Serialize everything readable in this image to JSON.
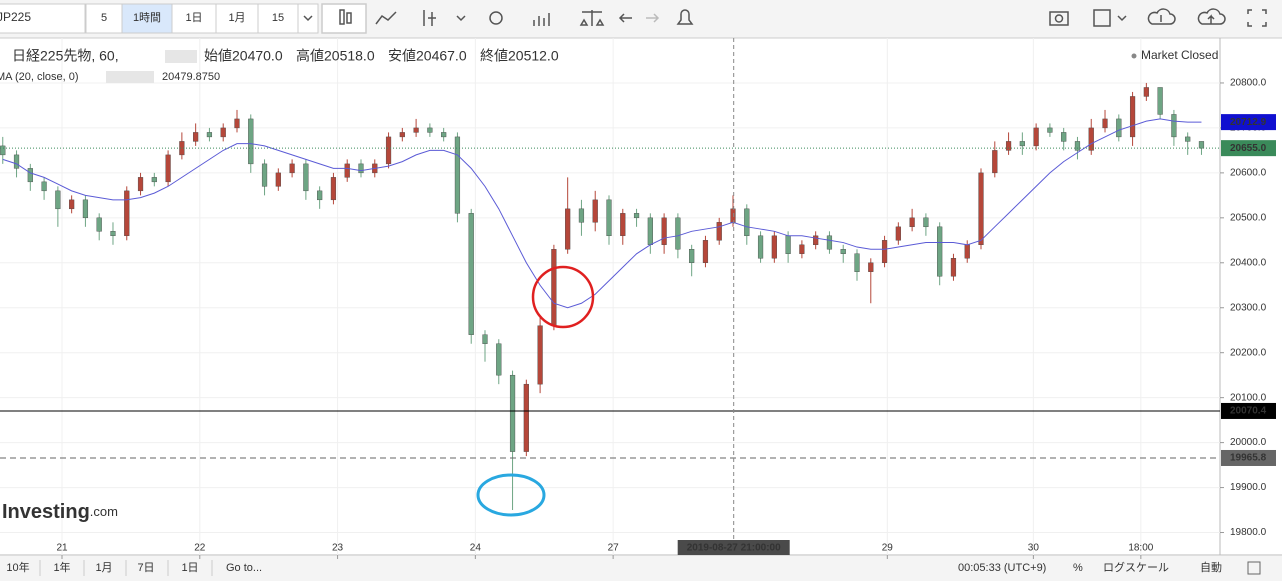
{
  "toolbar": {
    "symbol": "JP225",
    "buttons": [
      "5",
      "1時間",
      "1日",
      "1月",
      "15"
    ]
  },
  "footer": {
    "ranges": [
      "10年",
      "1年",
      "1月",
      "7日",
      "1日"
    ],
    "goto": "Go to...",
    "time": "00:05:33 (UTC+9)",
    "percent": "%",
    "log": "ログスケール",
    "auto": "自動"
  },
  "chart_data": {
    "type": "candlestick",
    "title": "日経225先物, 60,",
    "legend_ohlc": [
      {
        "name": "始値",
        "value": 20470,
        "label": "20470.0"
      },
      {
        "name": "高値",
        "value": 20518,
        "label": "20518.0"
      },
      {
        "name": "安値",
        "value": 20467,
        "label": "20467.0"
      },
      {
        "name": "終値",
        "value": 20512,
        "label": "20512.0"
      }
    ],
    "status": "Market Closed",
    "watermark": {
      "main": "Investing",
      "suffix": ".com"
    },
    "up_color": "#b5473a",
    "down_color": "#6ea584",
    "open": [
      20660,
      20640,
      20610,
      20580,
      20560,
      20520,
      20540,
      20500,
      20470,
      20460,
      20560,
      20590,
      20580,
      20640,
      20670,
      20690,
      20680,
      20700,
      20720,
      20620,
      20570,
      20600,
      20620,
      20560,
      20540,
      20590,
      20620,
      20600,
      20620,
      20680,
      20690,
      20700,
      20690,
      20680,
      20510,
      20240,
      20220,
      20150,
      19980,
      20130,
      20260,
      20430,
      20520,
      20490,
      20540,
      20460,
      20510,
      20500,
      20440,
      20500,
      20430,
      20400,
      20450,
      20490,
      20520,
      20460,
      20410,
      20460,
      20420,
      20440,
      20460,
      20430,
      20420,
      20380,
      20400,
      20450,
      20480,
      20500,
      20480,
      20370,
      20410,
      20440,
      20600,
      20650,
      20670,
      20660,
      20700,
      20690,
      20670,
      20650,
      20700,
      20720,
      20680,
      20770,
      20790,
      20730,
      20680,
      20670
    ],
    "high": [
      20680,
      20650,
      20620,
      20590,
      20570,
      20550,
      20550,
      20510,
      20490,
      20570,
      20600,
      20600,
      20650,
      20690,
      20710,
      20700,
      20710,
      20740,
      20730,
      20630,
      20610,
      20630,
      20630,
      20570,
      20600,
      20630,
      20630,
      20630,
      20690,
      20700,
      20720,
      20710,
      20700,
      20690,
      20520,
      20250,
      20230,
      20160,
      20140,
      20280,
      20440,
      20590,
      20540,
      20560,
      20550,
      20520,
      20520,
      20510,
      20510,
      20510,
      20440,
      20460,
      20500,
      20550,
      20530,
      20470,
      20470,
      20470,
      20450,
      20470,
      20470,
      20440,
      20430,
      20410,
      20460,
      20490,
      20520,
      20510,
      20490,
      20420,
      20450,
      20610,
      20670,
      20690,
      20690,
      20710,
      20710,
      20700,
      20680,
      20720,
      20740,
      20730,
      20780,
      20800,
      20790,
      20740,
      20690,
      20670
    ],
    "low": [
      20620,
      20590,
      20560,
      20540,
      20480,
      20510,
      20480,
      20450,
      20440,
      20450,
      20550,
      20570,
      20570,
      20630,
      20660,
      20670,
      20670,
      20690,
      20600,
      20550,
      20560,
      20590,
      20540,
      20520,
      20530,
      20580,
      20590,
      20590,
      20610,
      20670,
      20680,
      20680,
      20670,
      20490,
      20220,
      20180,
      20130,
      19850,
      19970,
      20110,
      20250,
      20420,
      20460,
      20470,
      20440,
      20440,
      20480,
      20420,
      20420,
      20410,
      20370,
      20390,
      20440,
      20480,
      20440,
      20400,
      20400,
      20400,
      20410,
      20430,
      20420,
      20400,
      20360,
      20310,
      20390,
      20440,
      20470,
      20460,
      20350,
      20360,
      20400,
      20430,
      20590,
      20640,
      20640,
      20650,
      20680,
      20650,
      20630,
      20640,
      20690,
      20670,
      20660,
      20760,
      20720,
      20660,
      20640,
      20640
    ],
    "close": [
      20640,
      20610,
      20580,
      20560,
      20520,
      20540,
      20500,
      20470,
      20460,
      20560,
      20590,
      20580,
      20640,
      20670,
      20690,
      20680,
      20700,
      20720,
      20620,
      20570,
      20600,
      20620,
      20560,
      20540,
      20590,
      20620,
      20600,
      20620,
      20680,
      20690,
      20700,
      20690,
      20680,
      20510,
      20240,
      20220,
      20150,
      19980,
      20130,
      20260,
      20430,
      20520,
      20490,
      20540,
      20460,
      20510,
      20500,
      20440,
      20500,
      20430,
      20400,
      20450,
      20490,
      20520,
      20460,
      20410,
      20460,
      20420,
      20440,
      20460,
      20430,
      20420,
      20380,
      20400,
      20450,
      20480,
      20500,
      20480,
      20370,
      20410,
      20440,
      20600,
      20650,
      20670,
      20660,
      20700,
      20690,
      20670,
      20650,
      20700,
      20720,
      20680,
      20770,
      20790,
      20730,
      20680,
      20670,
      20655
    ],
    "indicator": {
      "name": "MA (20, close, 0)",
      "last": {
        "value": 20479.875,
        "label": "20479.8750"
      },
      "color": "#5b5bd6",
      "values": [
        20630,
        20620,
        20600,
        20590,
        20575,
        20560,
        20550,
        20545,
        20540,
        20540,
        20545,
        20555,
        20570,
        20590,
        20610,
        20630,
        20650,
        20665,
        20665,
        20660,
        20650,
        20640,
        20630,
        20620,
        20610,
        20610,
        20605,
        20610,
        20615,
        20625,
        20640,
        20650,
        20650,
        20640,
        20610,
        20570,
        20520,
        20460,
        20400,
        20350,
        20310,
        20300,
        20310,
        20330,
        20360,
        20390,
        20420,
        20440,
        20455,
        20460,
        20470,
        20475,
        20480,
        20490,
        20480,
        20475,
        20470,
        20460,
        20460,
        20455,
        20450,
        20445,
        20435,
        20430,
        20430,
        20435,
        20440,
        20445,
        20445,
        20445,
        20440,
        20450,
        20480,
        20510,
        20540,
        20570,
        20600,
        20625,
        20645,
        20665,
        20680,
        20695,
        20705,
        20715,
        20720,
        20715,
        20713,
        20712.9
      ]
    },
    "price_lines": [
      {
        "value": 20712.9,
        "style": "none",
        "color": "#1010d0"
      },
      {
        "value": 20655,
        "label": "20655.0",
        "style": "dotted",
        "color": "#3a8a5a"
      },
      {
        "value": 20070.4,
        "style": "solid",
        "color": "#000000"
      },
      {
        "value": 19965.8,
        "style": "dashed",
        "color": "#666666"
      }
    ],
    "crosshair": {
      "x": 53.05,
      "label": "2019-08-27 21:00:00"
    },
    "xlim": [
      -0.2,
      88.2
    ],
    "xticks": [
      {
        "value": 4.3,
        "label": "21"
      },
      {
        "value": 14.3,
        "label": "22"
      },
      {
        "value": 24.3,
        "label": "23"
      },
      {
        "value": 34.3,
        "label": "24"
      },
      {
        "value": 44.3,
        "label": "27"
      },
      {
        "value": 64.2,
        "label": "29"
      },
      {
        "value": 74.8,
        "label": "30"
      },
      {
        "value": 82.6,
        "label": "18:00"
      }
    ],
    "ylim": [
      19750,
      20900
    ],
    "yticks": [
      {
        "value": 19800,
        "label": "19800.0"
      },
      {
        "value": 19900,
        "label": "19900.0"
      },
      {
        "value": 20000,
        "label": "20000.0"
      },
      {
        "value": 20100,
        "label": "20100.0"
      },
      {
        "value": 20200,
        "label": "20200.0"
      },
      {
        "value": 20300,
        "label": "20300.0"
      },
      {
        "value": 20400,
        "label": "20400.0"
      },
      {
        "value": 20500,
        "label": "20500.0"
      },
      {
        "value": 20600,
        "label": "20600.0"
      },
      {
        "value": 20700,
        "label": "20700.0"
      },
      {
        "value": 20800,
        "label": "20800.0"
      }
    ],
    "grid": true
  }
}
